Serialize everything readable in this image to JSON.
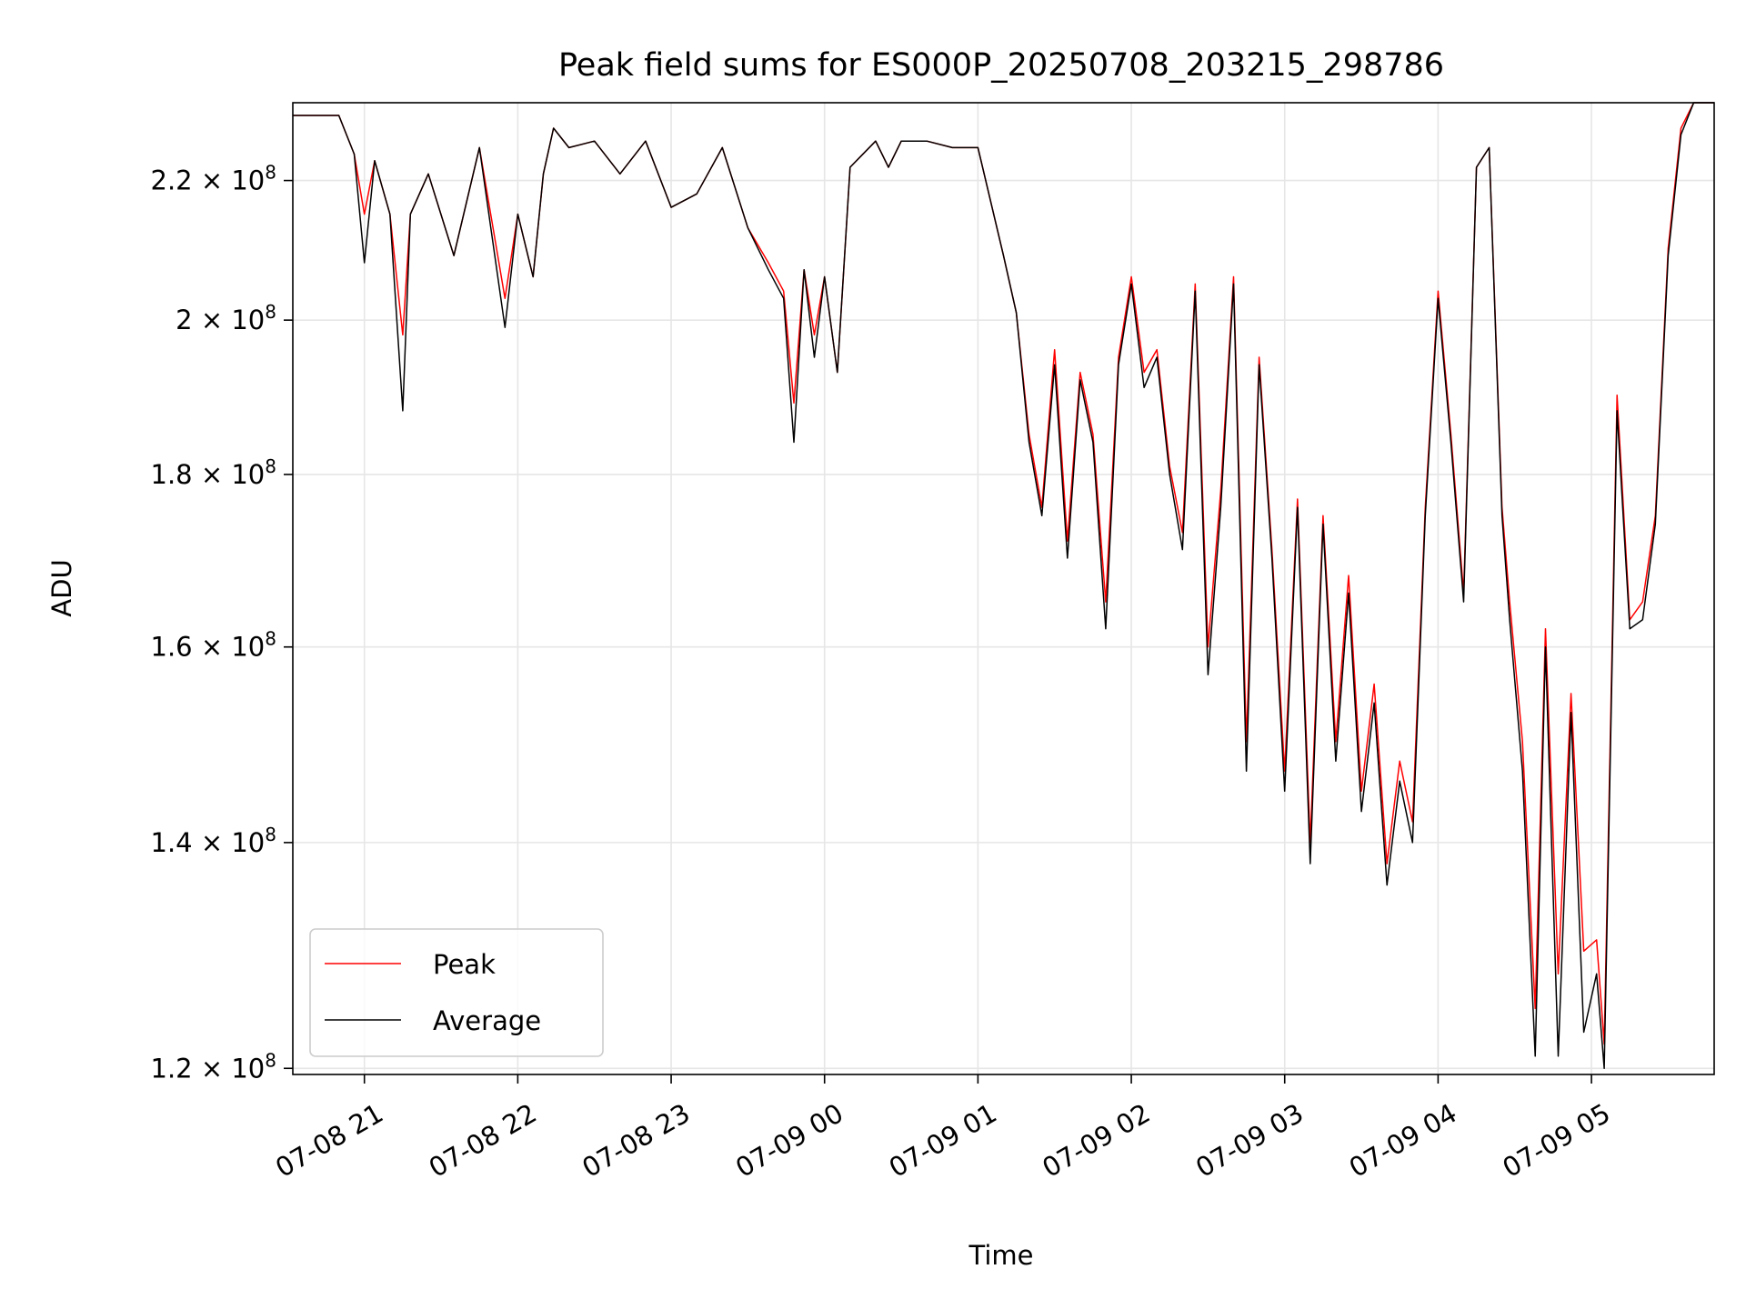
{
  "chart_data": {
    "type": "line",
    "title": "Peak field sums for ES000P_20250708_203215_298786",
    "xlabel": "Time",
    "ylabel": "ADU",
    "y_scale": "log",
    "grid": true,
    "legend_position": "lower-left",
    "xlim": [
      "2025-07-08 20:32",
      "2025-07-09 05:48"
    ],
    "ylim": [
      119500000,
      232000000
    ],
    "x_ticks": [
      {
        "value": "2025-07-08 21:00",
        "label": "07-08 21"
      },
      {
        "value": "2025-07-08 22:00",
        "label": "07-08 22"
      },
      {
        "value": "2025-07-08 23:00",
        "label": "07-08 23"
      },
      {
        "value": "2025-07-09 00:00",
        "label": "07-09 00"
      },
      {
        "value": "2025-07-09 01:00",
        "label": "07-09 01"
      },
      {
        "value": "2025-07-09 02:00",
        "label": "07-09 02"
      },
      {
        "value": "2025-07-09 03:00",
        "label": "07-09 03"
      },
      {
        "value": "2025-07-09 04:00",
        "label": "07-09 04"
      },
      {
        "value": "2025-07-09 05:00",
        "label": "07-09 05"
      }
    ],
    "y_ticks": [
      {
        "value": 120000000,
        "mantissa": "1.2",
        "exponent": "8"
      },
      {
        "value": 140000000,
        "mantissa": "1.4",
        "exponent": "8"
      },
      {
        "value": 160000000,
        "mantissa": "1.6",
        "exponent": "8"
      },
      {
        "value": 180000000,
        "mantissa": "1.8",
        "exponent": "8"
      },
      {
        "value": 200000000,
        "mantissa": "2",
        "exponent": "8"
      },
      {
        "value": 220000000,
        "mantissa": "2.2",
        "exponent": "8"
      }
    ],
    "series": [
      {
        "name": "Peak",
        "color": "#ff0000",
        "x": [
          "2025-07-08 20:32",
          "2025-07-08 20:50",
          "2025-07-08 20:56",
          "2025-07-08 21:00",
          "2025-07-08 21:04",
          "2025-07-08 21:10",
          "2025-07-08 21:15",
          "2025-07-08 21:18",
          "2025-07-08 21:25",
          "2025-07-08 21:35",
          "2025-07-08 21:45",
          "2025-07-08 21:55",
          "2025-07-08 22:00",
          "2025-07-08 22:06",
          "2025-07-08 22:10",
          "2025-07-08 22:14",
          "2025-07-08 22:20",
          "2025-07-08 22:30",
          "2025-07-08 22:40",
          "2025-07-08 22:50",
          "2025-07-08 23:00",
          "2025-07-08 23:10",
          "2025-07-08 23:20",
          "2025-07-08 23:30",
          "2025-07-08 23:38",
          "2025-07-08 23:44",
          "2025-07-08 23:48",
          "2025-07-08 23:52",
          "2025-07-08 23:56",
          "2025-07-09 00:00",
          "2025-07-09 00:05",
          "2025-07-09 00:10",
          "2025-07-09 00:20",
          "2025-07-09 00:25",
          "2025-07-09 00:30",
          "2025-07-09 00:40",
          "2025-07-09 00:50",
          "2025-07-09 01:00",
          "2025-07-09 01:10",
          "2025-07-09 01:15",
          "2025-07-09 01:20",
          "2025-07-09 01:25",
          "2025-07-09 01:30",
          "2025-07-09 01:35",
          "2025-07-09 01:40",
          "2025-07-09 01:45",
          "2025-07-09 01:50",
          "2025-07-09 01:55",
          "2025-07-09 02:00",
          "2025-07-09 02:05",
          "2025-07-09 02:10",
          "2025-07-09 02:15",
          "2025-07-09 02:20",
          "2025-07-09 02:25",
          "2025-07-09 02:30",
          "2025-07-09 02:35",
          "2025-07-09 02:40",
          "2025-07-09 02:45",
          "2025-07-09 02:50",
          "2025-07-09 02:55",
          "2025-07-09 03:00",
          "2025-07-09 03:05",
          "2025-07-09 03:10",
          "2025-07-09 03:15",
          "2025-07-09 03:20",
          "2025-07-09 03:25",
          "2025-07-09 03:30",
          "2025-07-09 03:35",
          "2025-07-09 03:40",
          "2025-07-09 03:45",
          "2025-07-09 03:50",
          "2025-07-09 03:55",
          "2025-07-09 04:00",
          "2025-07-09 04:05",
          "2025-07-09 04:10",
          "2025-07-09 04:15",
          "2025-07-09 04:20",
          "2025-07-09 04:25",
          "2025-07-09 04:28",
          "2025-07-09 04:33",
          "2025-07-09 04:38",
          "2025-07-09 04:42",
          "2025-07-09 04:47",
          "2025-07-09 04:52",
          "2025-07-09 04:57",
          "2025-07-09 05:02",
          "2025-07-09 05:05",
          "2025-07-09 05:10",
          "2025-07-09 05:15",
          "2025-07-09 05:20",
          "2025-07-09 05:25",
          "2025-07-09 05:30",
          "2025-07-09 05:35",
          "2025-07-09 05:40",
          "2025-07-09 05:45",
          "2025-07-09 05:48"
        ],
        "values": [
          230000000,
          230000000,
          224000000,
          215000000,
          223000000,
          215000000,
          198000000,
          215000000,
          221000000,
          209000000,
          225000000,
          203000000,
          215000000,
          206000000,
          221000000,
          228000000,
          225000000,
          226000000,
          221000000,
          226000000,
          216000000,
          218000000,
          225000000,
          213000000,
          208000000,
          204000000,
          189000000,
          207000000,
          198000000,
          206000000,
          193000000,
          222000000,
          226000000,
          222000000,
          226000000,
          226000000,
          225000000,
          225000000,
          209000000,
          201000000,
          185000000,
          176000000,
          196000000,
          172000000,
          193000000,
          185000000,
          165000000,
          195000000,
          206000000,
          193000000,
          196000000,
          181000000,
          173000000,
          205000000,
          160000000,
          178000000,
          206000000,
          150000000,
          195000000,
          171000000,
          147000000,
          177000000,
          140000000,
          175000000,
          150000000,
          168000000,
          145000000,
          156000000,
          138000000,
          148000000,
          142000000,
          176000000,
          204000000,
          185000000,
          166000000,
          222000000,
          225000000,
          176000000,
          165000000,
          150000000,
          125000000,
          162000000,
          128000000,
          155000000,
          130000000,
          131000000,
          122000000,
          190000000,
          163000000,
          165000000,
          175000000,
          210000000,
          228000000,
          232000000,
          232000000,
          232000000
        ]
      },
      {
        "name": "Average",
        "color": "#000000",
        "x": [
          "2025-07-08 20:32",
          "2025-07-08 20:50",
          "2025-07-08 20:56",
          "2025-07-08 21:00",
          "2025-07-08 21:04",
          "2025-07-08 21:10",
          "2025-07-08 21:15",
          "2025-07-08 21:18",
          "2025-07-08 21:25",
          "2025-07-08 21:35",
          "2025-07-08 21:45",
          "2025-07-08 21:55",
          "2025-07-08 22:00",
          "2025-07-08 22:06",
          "2025-07-08 22:10",
          "2025-07-08 22:14",
          "2025-07-08 22:20",
          "2025-07-08 22:30",
          "2025-07-08 22:40",
          "2025-07-08 22:50",
          "2025-07-08 23:00",
          "2025-07-08 23:10",
          "2025-07-08 23:20",
          "2025-07-08 23:30",
          "2025-07-08 23:38",
          "2025-07-08 23:44",
          "2025-07-08 23:48",
          "2025-07-08 23:52",
          "2025-07-08 23:56",
          "2025-07-09 00:00",
          "2025-07-09 00:05",
          "2025-07-09 00:10",
          "2025-07-09 00:20",
          "2025-07-09 00:25",
          "2025-07-09 00:30",
          "2025-07-09 00:40",
          "2025-07-09 00:50",
          "2025-07-09 01:00",
          "2025-07-09 01:10",
          "2025-07-09 01:15",
          "2025-07-09 01:20",
          "2025-07-09 01:25",
          "2025-07-09 01:30",
          "2025-07-09 01:35",
          "2025-07-09 01:40",
          "2025-07-09 01:45",
          "2025-07-09 01:50",
          "2025-07-09 01:55",
          "2025-07-09 02:00",
          "2025-07-09 02:05",
          "2025-07-09 02:10",
          "2025-07-09 02:15",
          "2025-07-09 02:20",
          "2025-07-09 02:25",
          "2025-07-09 02:30",
          "2025-07-09 02:35",
          "2025-07-09 02:40",
          "2025-07-09 02:45",
          "2025-07-09 02:50",
          "2025-07-09 02:55",
          "2025-07-09 03:00",
          "2025-07-09 03:05",
          "2025-07-09 03:10",
          "2025-07-09 03:15",
          "2025-07-09 03:20",
          "2025-07-09 03:25",
          "2025-07-09 03:30",
          "2025-07-09 03:35",
          "2025-07-09 03:40",
          "2025-07-09 03:45",
          "2025-07-09 03:50",
          "2025-07-09 03:55",
          "2025-07-09 04:00",
          "2025-07-09 04:05",
          "2025-07-09 04:10",
          "2025-07-09 04:15",
          "2025-07-09 04:20",
          "2025-07-09 04:25",
          "2025-07-09 04:28",
          "2025-07-09 04:33",
          "2025-07-09 04:38",
          "2025-07-09 04:42",
          "2025-07-09 04:47",
          "2025-07-09 04:52",
          "2025-07-09 04:57",
          "2025-07-09 05:02",
          "2025-07-09 05:05",
          "2025-07-09 05:10",
          "2025-07-09 05:15",
          "2025-07-09 05:20",
          "2025-07-09 05:25",
          "2025-07-09 05:30",
          "2025-07-09 05:35",
          "2025-07-09 05:40",
          "2025-07-09 05:45",
          "2025-07-09 05:48"
        ],
        "values": [
          230000000,
          230000000,
          224000000,
          208000000,
          223000000,
          215000000,
          188000000,
          215000000,
          221000000,
          209000000,
          225000000,
          199000000,
          215000000,
          206000000,
          221000000,
          228000000,
          225000000,
          226000000,
          221000000,
          226000000,
          216000000,
          218000000,
          225000000,
          213000000,
          207000000,
          203000000,
          184000000,
          207000000,
          195000000,
          206000000,
          193000000,
          222000000,
          226000000,
          222000000,
          226000000,
          226000000,
          225000000,
          225000000,
          209000000,
          201000000,
          184000000,
          175000000,
          194000000,
          170000000,
          192000000,
          184000000,
          162000000,
          194000000,
          205000000,
          191000000,
          195000000,
          180000000,
          171000000,
          204000000,
          157000000,
          176000000,
          205000000,
          147000000,
          194000000,
          170000000,
          145000000,
          176000000,
          138000000,
          174000000,
          148000000,
          166000000,
          143000000,
          154000000,
          136000000,
          146000000,
          140000000,
          175000000,
          203000000,
          184000000,
          165000000,
          222000000,
          225000000,
          175000000,
          163000000,
          147000000,
          121000000,
          160000000,
          121000000,
          153000000,
          123000000,
          128000000,
          120000000,
          188000000,
          162000000,
          163000000,
          174000000,
          209000000,
          227000000,
          232000000,
          232000000,
          232000000
        ]
      }
    ]
  }
}
